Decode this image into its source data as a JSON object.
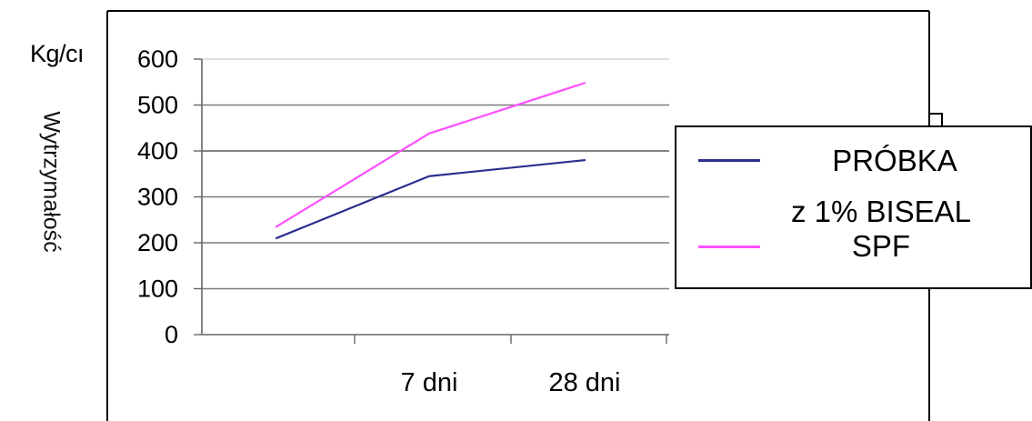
{
  "chart_data": {
    "type": "line",
    "title": "",
    "unit_label": "Kg/cı",
    "ylabel": "Wytrzymałość",
    "xlabel": "",
    "x_positions": [
      "",
      "7 dni",
      "28 dni"
    ],
    "x_tick_labels": [
      "7 dni",
      "28 dni"
    ],
    "y_ticks": [
      0,
      100,
      200,
      300,
      400,
      500,
      600
    ],
    "ylim": [
      0,
      600
    ],
    "grid": true,
    "legend": "right",
    "series": [
      {
        "name": "PRÓBKA",
        "color": "#2c2f8f",
        "values": [
          210,
          345,
          380
        ]
      },
      {
        "name": "z 1% BISEAL SPF",
        "color": "#ff4fff",
        "values": [
          235,
          438,
          548
        ]
      }
    ]
  }
}
